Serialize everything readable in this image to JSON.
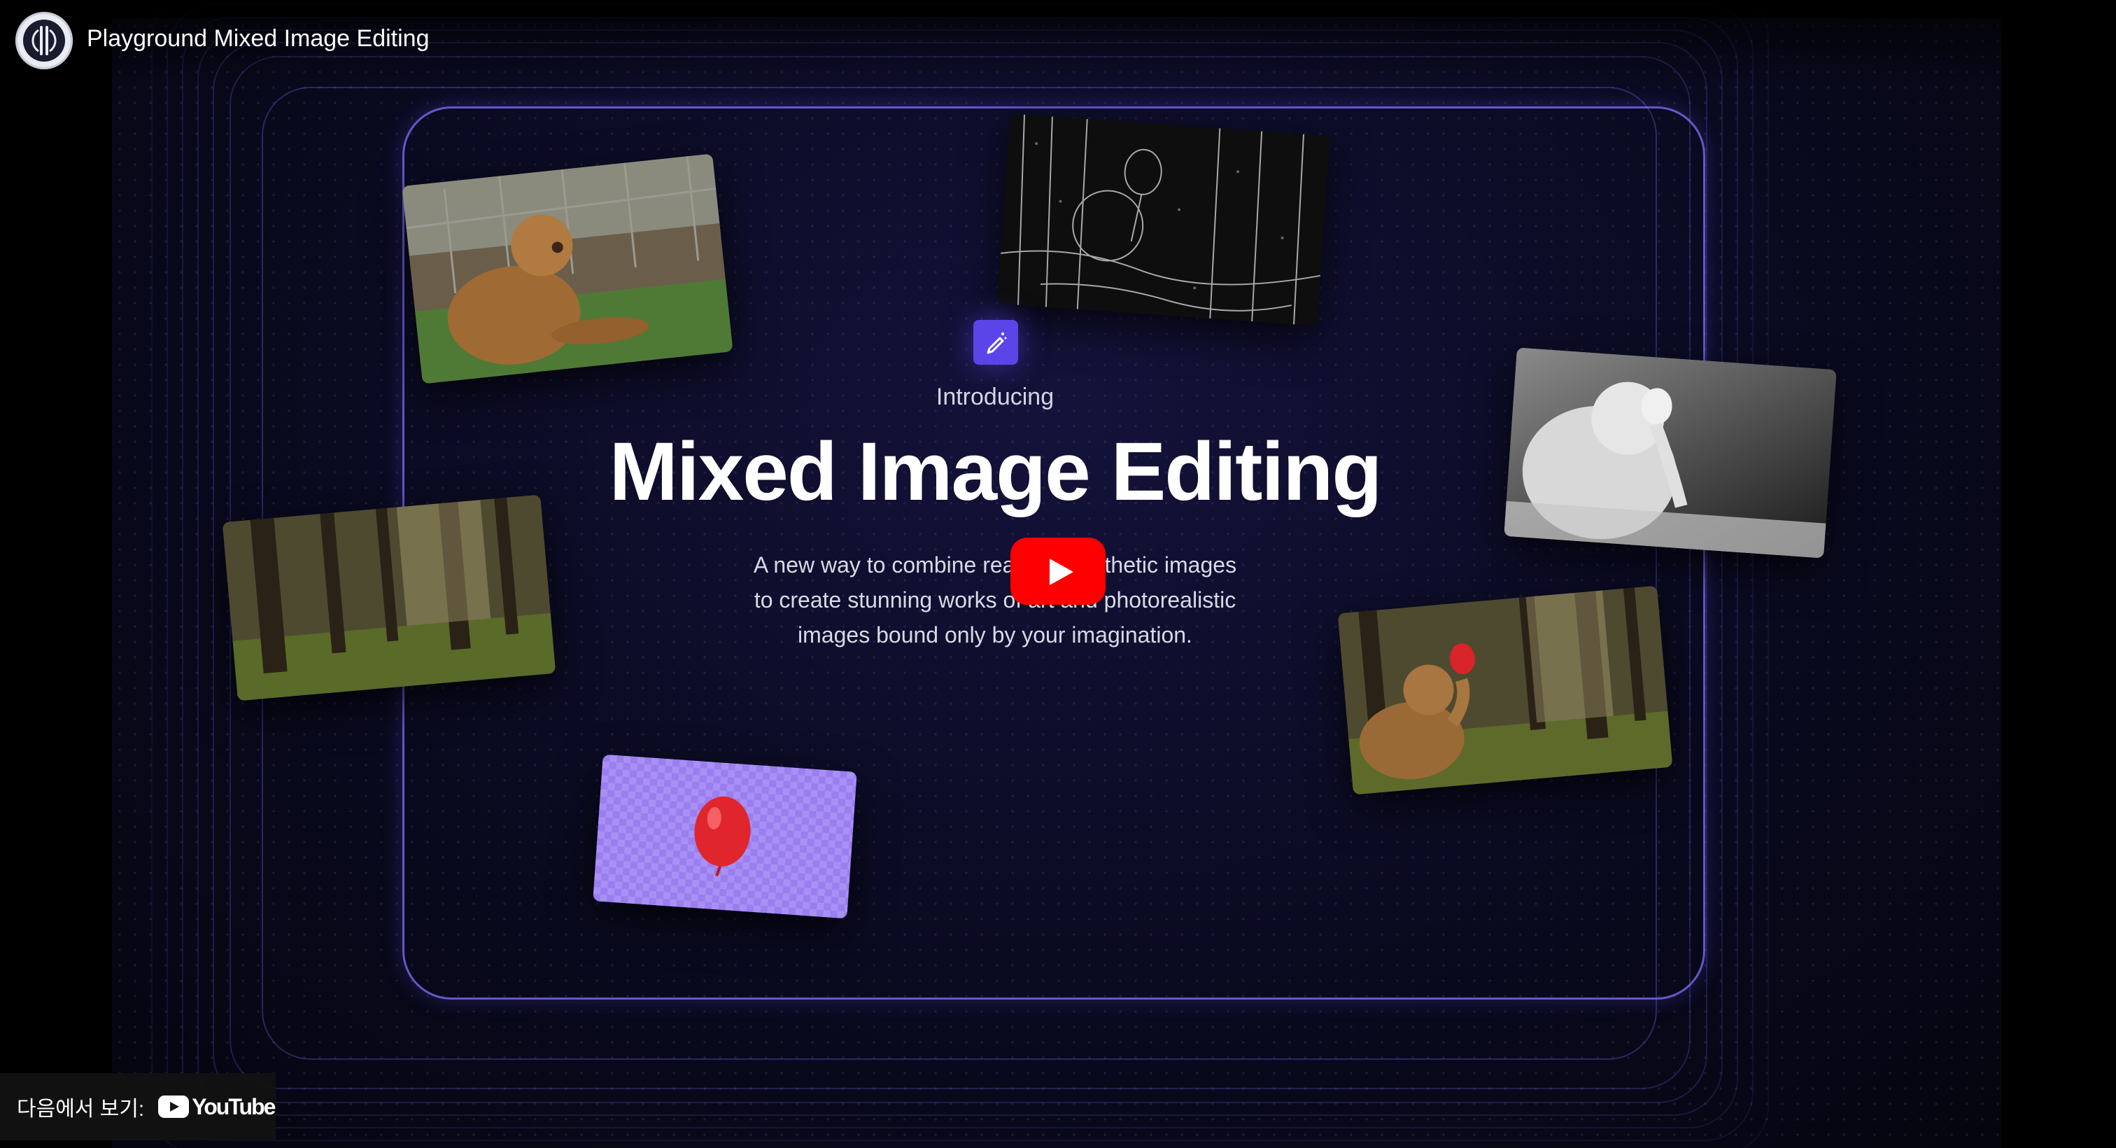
{
  "header": {
    "title": "Playground Mixed Image Editing",
    "channel_icon": "playground-logo-icon"
  },
  "video": {
    "eyebrow": "Introducing",
    "headline": "Mixed Image Editing",
    "description_lines": [
      "A new way to combine real and synthetic images",
      "to create stunning works of art and photorealistic",
      "images bound only by your imagination."
    ],
    "feature_icon": "pencil-sparkle-icon",
    "cards": [
      "bear-photo",
      "edge-detection-sketch",
      "depth-map",
      "forest-photo",
      "bear-with-balloon-composite",
      "balloon-cutout"
    ],
    "accent_color": "#5b45e8",
    "frame_color": "#7a6bff"
  },
  "controls": {
    "play_icon": "play-icon",
    "play_color": "#ff0000"
  },
  "footer": {
    "watch_on_label": "다음에서 보기:",
    "youtube_label": "YouTube",
    "youtube_icon": "youtube-logo-icon"
  }
}
